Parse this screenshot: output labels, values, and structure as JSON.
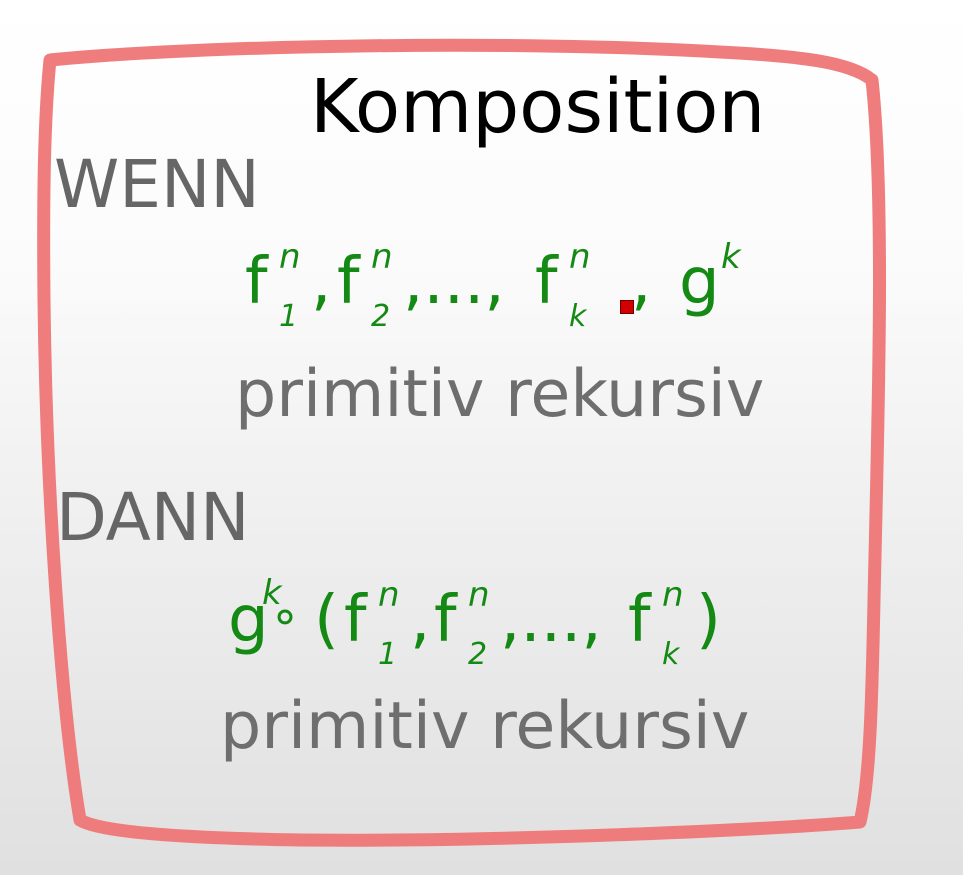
{
  "title": "Komposition",
  "condition": {
    "keyword": "WENN",
    "functions": [
      {
        "name": "f",
        "sup": "n",
        "sub": "1"
      },
      {
        "name": "f",
        "sup": "n",
        "sub": "2"
      },
      {
        "name": "f",
        "sup": "n",
        "sub": "k"
      }
    ],
    "comma": ",",
    "ellipsis": ",...,",
    "outer_function": {
      "name": "g",
      "sup": "k"
    },
    "property": "primitiv rekursiv"
  },
  "conclusion": {
    "keyword": "DANN",
    "outer_function": {
      "name": "g",
      "sup": "k"
    },
    "compose_symbol": "∘",
    "open_paren": "(",
    "close_paren": ")",
    "comma": ",",
    "ellipsis": ",...,",
    "functions": [
      {
        "name": "f",
        "sup": "n",
        "sub": "1"
      },
      {
        "name": "f",
        "sup": "n",
        "sub": "2"
      },
      {
        "name": "f",
        "sup": "n",
        "sub": "k"
      }
    ],
    "property": "primitiv rekursiv"
  },
  "colors": {
    "frame": "#ef7676",
    "formula": "#148a14",
    "keyword": "#666666",
    "title": "#000000",
    "cursor": "#d40000"
  }
}
